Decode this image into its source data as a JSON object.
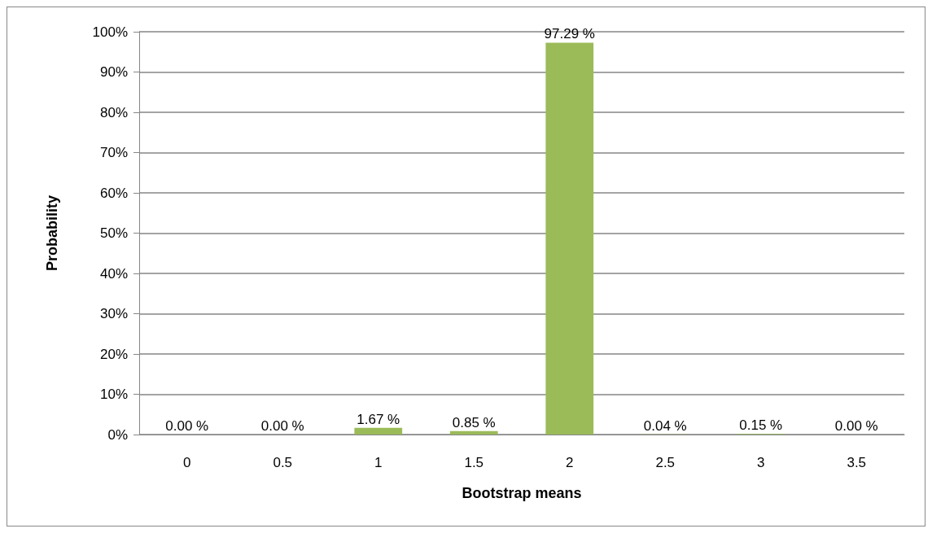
{
  "chart_data": {
    "type": "bar",
    "xlabel": "Bootstrap means",
    "ylabel": "Probability",
    "categories": [
      "0",
      "0.5",
      "1",
      "1.5",
      "2",
      "2.5",
      "3",
      "3.5"
    ],
    "values": [
      0,
      0,
      1.67,
      0.85,
      97.29,
      0.04,
      0.15,
      0
    ],
    "value_labels": [
      "0.00 %",
      "0.00 %",
      "1.67 %",
      "0.85 %",
      "97.29 %",
      "0.04 %",
      "0.15 %",
      "0.00 %"
    ],
    "color": "#9bbb59",
    "ylim": [
      0,
      100
    ],
    "yticks": [
      {
        "value": 0,
        "label": "0%"
      },
      {
        "value": 10,
        "label": "10%"
      },
      {
        "value": 20,
        "label": "20%"
      },
      {
        "value": 30,
        "label": "30%"
      },
      {
        "value": 40,
        "label": "40%"
      },
      {
        "value": 50,
        "label": "50%"
      },
      {
        "value": 60,
        "label": "60%"
      },
      {
        "value": 70,
        "label": "70%"
      },
      {
        "value": 80,
        "label": "80%"
      },
      {
        "value": 90,
        "label": "90%"
      },
      {
        "value": 100,
        "label": "100%"
      }
    ],
    "grid": "y"
  }
}
